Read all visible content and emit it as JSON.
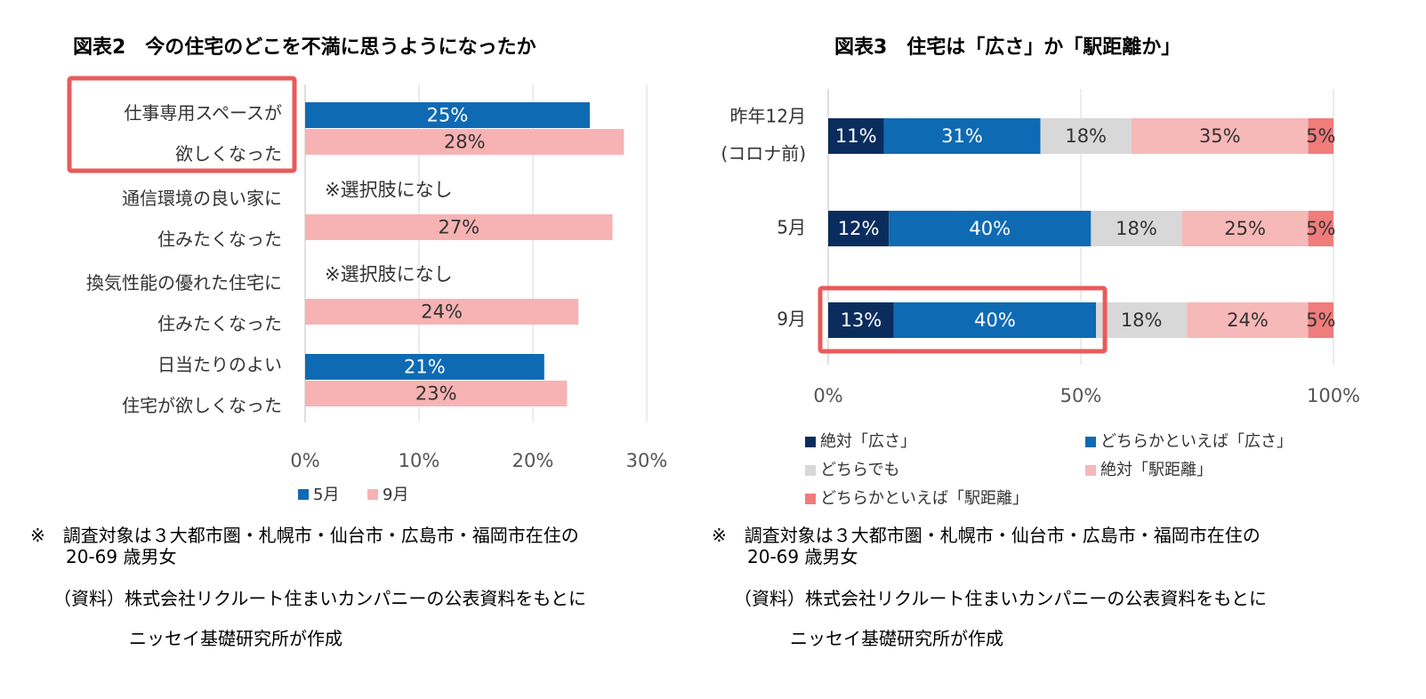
{
  "chart_data": [
    {
      "type": "bar",
      "orientation": "horizontal",
      "title": "図表2　今の住宅のどこを不満に思うようになったか",
      "categories": [
        [
          "仕事専用スペースが",
          "欲しくなった"
        ],
        [
          "通信環境の良い家に",
          "住みたくなった"
        ],
        [
          "換気性能の優れた住宅に",
          "住みたくなった"
        ],
        [
          "日当たりのよい",
          "住宅が欲しくなった"
        ]
      ],
      "series": [
        {
          "name": "5月",
          "color": "#0f6ab4",
          "values": [
            25,
            null,
            null,
            21
          ]
        },
        {
          "name": "9月",
          "color": "#f7b3b3",
          "values": [
            28,
            27,
            24,
            23
          ]
        }
      ],
      "value_suffix": "%",
      "na_label": "※選択肢になし",
      "xlim": [
        0,
        30
      ],
      "xticks": [
        "0%",
        "10%",
        "20%",
        "30%"
      ],
      "highlight_category_index": 0,
      "highlight_color": "#e85b5b",
      "legend": "bottom",
      "note_lines": [
        "※　調査対象は３大都市圏・札幌市・仙台市・広島市・福岡市在住の",
        "20-69 歳男女",
        "（資料）株式会社リクルート住まいカンパニーの公表資料をもとに",
        "ニッセイ基礎研究所が作成"
      ]
    },
    {
      "type": "bar",
      "orientation": "horizontal",
      "stacked": true,
      "title": "図表3　住宅は「広さ」か「駅距離か」",
      "categories": [
        [
          "昨年12月",
          "(コロナ前)"
        ],
        [
          "5月"
        ],
        [
          "9月"
        ]
      ],
      "series": [
        {
          "name": "絶対「広さ」",
          "color": "#0b2d5e",
          "label_color": "#ffffff",
          "values": [
            11,
            12,
            13
          ]
        },
        {
          "name": "どちらかといえば「広さ」",
          "color": "#0f6ab4",
          "label_color": "#ffffff",
          "values": [
            31,
            40,
            40
          ]
        },
        {
          "name": "どちらでも",
          "color": "#d8d8d8",
          "label_color": "#333333",
          "values": [
            18,
            18,
            18
          ]
        },
        {
          "name": "絶対「駅距離」",
          "color": "#f7b8b8",
          "label_color": "#333333",
          "values": [
            35,
            25,
            24
          ]
        },
        {
          "name": "どちらかといえば「駅距離」",
          "color": "#f07c7c",
          "label_color": "#333333",
          "values": [
            5,
            5,
            5
          ]
        }
      ],
      "value_suffix": "%",
      "xlim": [
        0,
        100
      ],
      "xticks": [
        "0%",
        "50%",
        "100%"
      ],
      "highlight_category_index": 2,
      "highlight_series": [
        0,
        1
      ],
      "highlight_color": "#e85b5b",
      "legend": "bottom",
      "note_lines": [
        "※　調査対象は３大都市圏・札幌市・仙台市・広島市・福岡市在住の",
        "20-69 歳男女",
        "（資料）株式会社リクルート住まいカンパニーの公表資料をもとに",
        "ニッセイ基礎研究所が作成"
      ]
    }
  ]
}
